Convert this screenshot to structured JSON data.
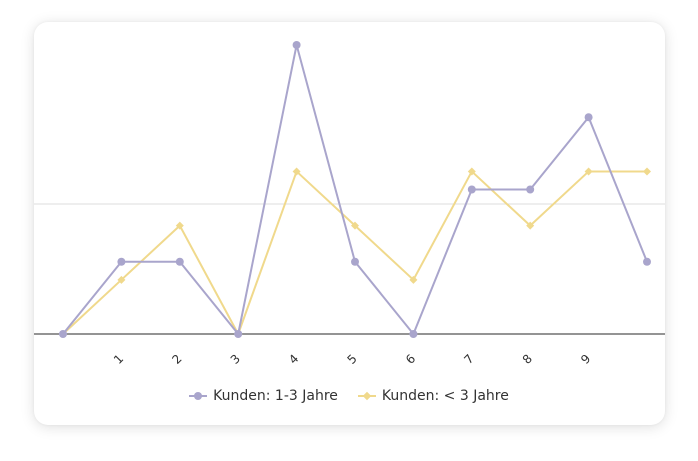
{
  "chart_data": {
    "type": "line",
    "x": [
      "",
      "1",
      "2",
      "3",
      "4",
      "5",
      "6",
      "7",
      "8",
      "9",
      ""
    ],
    "series": [
      {
        "name": "Kunden: 1-3 Jahre",
        "values": [
          0,
          2,
          2,
          0,
          8,
          2,
          0,
          4,
          4,
          6,
          2
        ],
        "color": "#a9a5cc",
        "marker": "circle"
      },
      {
        "name": "Kunden: < 3 Jahre",
        "values": [
          0,
          1.5,
          3,
          0,
          4.5,
          3,
          1.5,
          4.5,
          3,
          4.5,
          4.5
        ],
        "color": "#f0d98c",
        "marker": "diamond"
      }
    ],
    "ylim": [
      0,
      8
    ],
    "gridlines": [
      3.6
    ],
    "grid": true,
    "legend_position": "bottom",
    "colors": {
      "axis": "#555555",
      "grid": "#dddddd",
      "tick_text": "#333333"
    }
  }
}
